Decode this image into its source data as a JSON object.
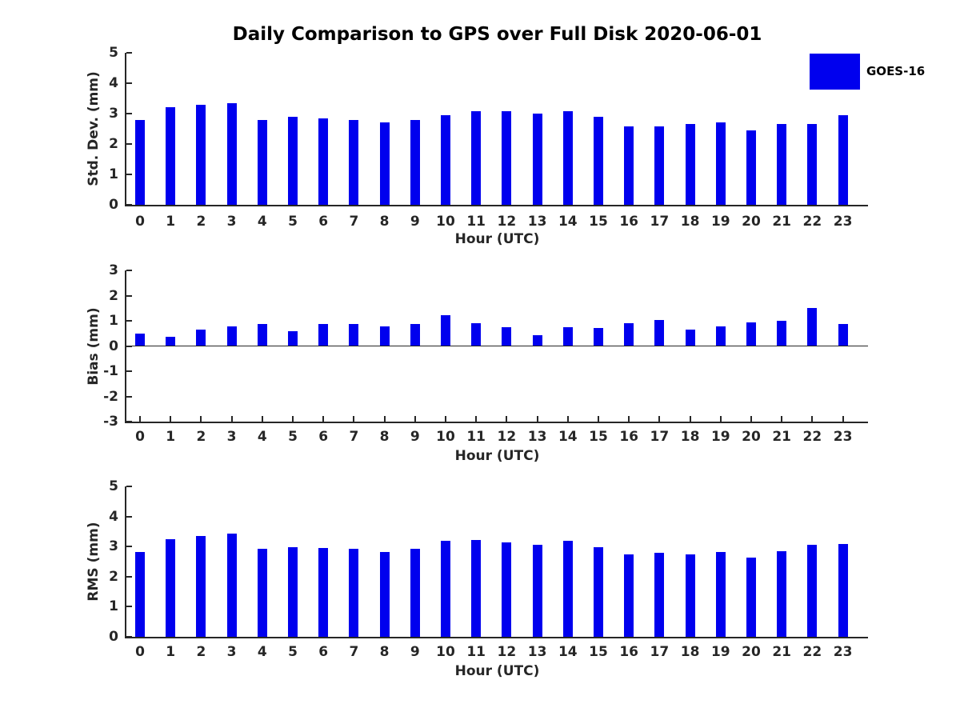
{
  "figure": {
    "title": "Daily Comparison to GPS over Full Disk 2020-06-01",
    "legend": {
      "label": "GOES-16",
      "swatch_color": "#0000EE",
      "position": "upper-right"
    },
    "bar_color": "#0000EE",
    "xlabel": "Hour (UTC)"
  },
  "chart_data": [
    {
      "type": "bar",
      "id": "std-dev",
      "series_name": "GOES-16",
      "ylabel": "Std. Dev. (mm)",
      "xlabel": "Hour (UTC)",
      "grid": false,
      "categories": [
        0,
        1,
        2,
        3,
        4,
        5,
        6,
        7,
        8,
        9,
        10,
        11,
        12,
        13,
        14,
        15,
        16,
        17,
        18,
        19,
        20,
        21,
        22,
        23
      ],
      "values": [
        2.8,
        3.22,
        3.3,
        3.35,
        2.8,
        2.9,
        2.83,
        2.8,
        2.72,
        2.78,
        2.96,
        3.07,
        3.07,
        3.01,
        3.09,
        2.9,
        2.59,
        2.59,
        2.66,
        2.72,
        2.46,
        2.66,
        2.65,
        2.96
      ],
      "ylim": [
        0,
        5
      ],
      "yticks": [
        0,
        1,
        2,
        3,
        4,
        5
      ]
    },
    {
      "type": "bar",
      "id": "bias",
      "series_name": "GOES-16",
      "ylabel": "Bias (mm)",
      "xlabel": "Hour (UTC)",
      "grid": false,
      "categories": [
        0,
        1,
        2,
        3,
        4,
        5,
        6,
        7,
        8,
        9,
        10,
        11,
        12,
        13,
        14,
        15,
        16,
        17,
        18,
        19,
        20,
        21,
        22,
        23
      ],
      "values": [
        0.48,
        0.37,
        0.65,
        0.77,
        0.87,
        0.6,
        0.86,
        0.86,
        0.77,
        0.86,
        1.22,
        0.92,
        0.74,
        0.43,
        0.74,
        0.7,
        0.91,
        1.02,
        0.65,
        0.77,
        0.95,
        0.99,
        1.52,
        0.87
      ],
      "ylim": [
        -3,
        3
      ],
      "yticks": [
        -3,
        -2,
        -1,
        0,
        1,
        2,
        3
      ]
    },
    {
      "type": "bar",
      "id": "rms",
      "series_name": "GOES-16",
      "ylabel": "RMS (mm)",
      "xlabel": "Hour (UTC)",
      "grid": false,
      "categories": [
        0,
        1,
        2,
        3,
        4,
        5,
        6,
        7,
        8,
        9,
        10,
        11,
        12,
        13,
        14,
        15,
        16,
        17,
        18,
        19,
        20,
        21,
        22,
        23
      ],
      "values": [
        2.82,
        3.24,
        3.36,
        3.43,
        2.93,
        2.98,
        2.95,
        2.93,
        2.82,
        2.93,
        3.18,
        3.22,
        3.13,
        3.05,
        3.2,
        2.98,
        2.74,
        2.79,
        2.74,
        2.82,
        2.63,
        2.85,
        3.05,
        3.08
      ],
      "ylim": [
        0,
        5
      ],
      "yticks": [
        0,
        1,
        2,
        3,
        4,
        5
      ]
    }
  ]
}
